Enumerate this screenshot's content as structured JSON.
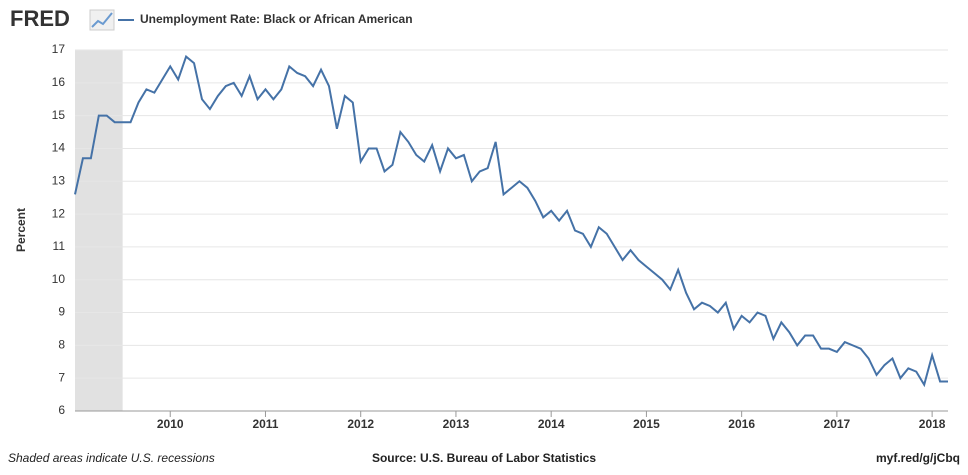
{
  "chart_data": {
    "type": "line",
    "logo": "FRED",
    "title": "Unemployment Rate: Black or African American",
    "y_label": "Percent",
    "footer_left": "Shaded areas indicate U.S. recessions",
    "footer_center": "Source: U.S. Bureau of Labor Statistics",
    "footer_right": "myf.red/g/jCbq",
    "recessions": [
      {
        "start": "2009-01",
        "end": "2009-06"
      }
    ],
    "xlim": [
      "2009-01",
      "2018-03"
    ],
    "xticks": [
      {
        "value": "2010-01",
        "label": "2010"
      },
      {
        "value": "2011-01",
        "label": "2011"
      },
      {
        "value": "2012-01",
        "label": "2012"
      },
      {
        "value": "2013-01",
        "label": "2013"
      },
      {
        "value": "2014-01",
        "label": "2014"
      },
      {
        "value": "2015-01",
        "label": "2015"
      },
      {
        "value": "2016-01",
        "label": "2016"
      },
      {
        "value": "2017-01",
        "label": "2017"
      },
      {
        "value": "2018-01",
        "label": "2018"
      }
    ],
    "ylim": [
      6,
      17
    ],
    "yticks": [
      6,
      7,
      8,
      9,
      10,
      11,
      12,
      13,
      14,
      15,
      16,
      17
    ],
    "grid": true,
    "x": [
      "2009-01",
      "2009-02",
      "2009-03",
      "2009-04",
      "2009-05",
      "2009-06",
      "2009-07",
      "2009-08",
      "2009-09",
      "2009-10",
      "2009-11",
      "2009-12",
      "2010-01",
      "2010-02",
      "2010-03",
      "2010-04",
      "2010-05",
      "2010-06",
      "2010-07",
      "2010-08",
      "2010-09",
      "2010-10",
      "2010-11",
      "2010-12",
      "2011-01",
      "2011-02",
      "2011-03",
      "2011-04",
      "2011-05",
      "2011-06",
      "2011-07",
      "2011-08",
      "2011-09",
      "2011-10",
      "2011-11",
      "2011-12",
      "2012-01",
      "2012-02",
      "2012-03",
      "2012-04",
      "2012-05",
      "2012-06",
      "2012-07",
      "2012-08",
      "2012-09",
      "2012-10",
      "2012-11",
      "2012-12",
      "2013-01",
      "2013-02",
      "2013-03",
      "2013-04",
      "2013-05",
      "2013-06",
      "2013-07",
      "2013-08",
      "2013-09",
      "2013-10",
      "2013-11",
      "2013-12",
      "2014-01",
      "2014-02",
      "2014-03",
      "2014-04",
      "2014-05",
      "2014-06",
      "2014-07",
      "2014-08",
      "2014-09",
      "2014-10",
      "2014-11",
      "2014-12",
      "2015-01",
      "2015-02",
      "2015-03",
      "2015-04",
      "2015-05",
      "2015-06",
      "2015-07",
      "2015-08",
      "2015-09",
      "2015-10",
      "2015-11",
      "2015-12",
      "2016-01",
      "2016-02",
      "2016-03",
      "2016-04",
      "2016-05",
      "2016-06",
      "2016-07",
      "2016-08",
      "2016-09",
      "2016-10",
      "2016-11",
      "2016-12",
      "2017-01",
      "2017-02",
      "2017-03",
      "2017-04",
      "2017-05",
      "2017-06",
      "2017-07",
      "2017-08",
      "2017-09",
      "2017-10",
      "2017-11",
      "2017-12",
      "2018-01",
      "2018-02",
      "2018-03"
    ],
    "series": [
      {
        "name": "Unemployment Rate: Black or African American",
        "color": "#4572a7",
        "values": [
          12.6,
          13.7,
          13.7,
          15.0,
          15.0,
          14.8,
          14.8,
          14.8,
          15.4,
          15.8,
          15.7,
          16.1,
          16.5,
          16.1,
          16.8,
          16.6,
          15.5,
          15.2,
          15.6,
          15.9,
          16.0,
          15.6,
          16.2,
          15.5,
          15.8,
          15.5,
          15.8,
          16.5,
          16.3,
          16.2,
          15.9,
          16.4,
          15.9,
          14.6,
          15.6,
          15.4,
          13.6,
          14.0,
          14.0,
          13.3,
          13.5,
          14.5,
          14.2,
          13.8,
          13.6,
          14.1,
          13.3,
          14.0,
          13.7,
          13.8,
          13.0,
          13.3,
          13.4,
          14.2,
          12.6,
          12.8,
          13.0,
          12.8,
          12.4,
          11.9,
          12.1,
          11.8,
          12.1,
          11.5,
          11.4,
          11.0,
          11.6,
          11.4,
          11.0,
          10.6,
          10.9,
          10.6,
          10.4,
          10.2,
          10.0,
          9.7,
          10.3,
          9.6,
          9.1,
          9.3,
          9.2,
          9.0,
          9.3,
          8.5,
          8.9,
          8.7,
          9.0,
          8.9,
          8.2,
          8.7,
          8.4,
          8.0,
          8.3,
          8.3,
          7.9,
          7.9,
          7.8,
          8.1,
          8.0,
          7.9,
          7.6,
          7.1,
          7.4,
          7.6,
          7.0,
          7.3,
          7.2,
          6.8,
          7.7,
          6.9,
          6.9
        ]
      }
    ]
  }
}
